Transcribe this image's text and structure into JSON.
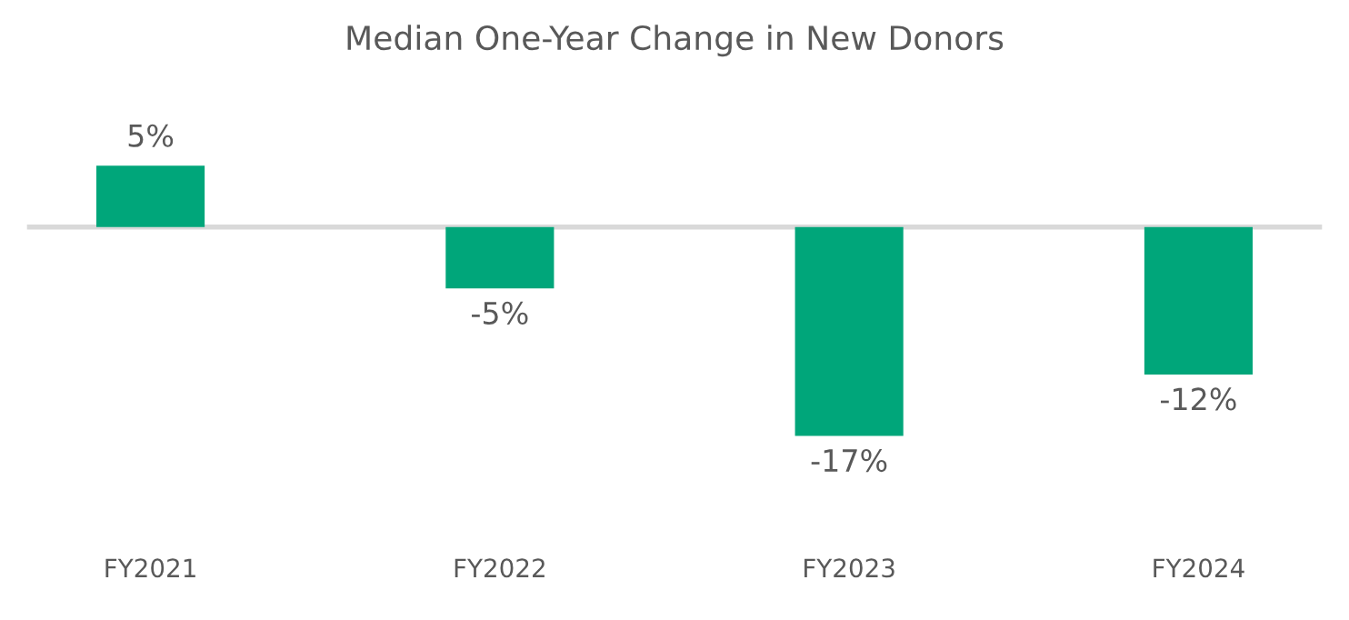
{
  "chart_data": {
    "type": "bar",
    "title": "Median One-Year Change in New Donors",
    "categories": [
      "FY2021",
      "FY2022",
      "FY2023",
      "FY2024"
    ],
    "values": [
      5,
      -5,
      -17,
      -12
    ],
    "value_labels": [
      "5%",
      "-5%",
      "-17%",
      "-12%"
    ],
    "color": "#00a67a"
  }
}
